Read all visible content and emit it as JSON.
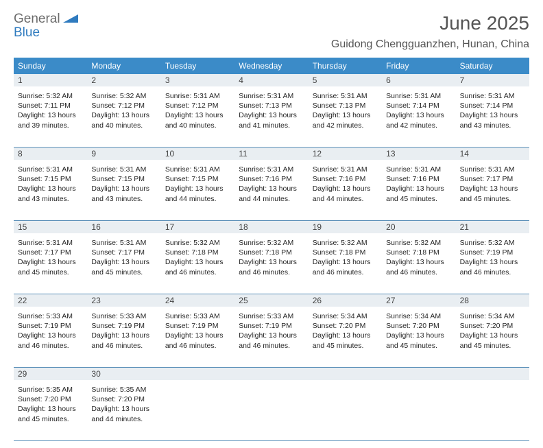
{
  "logo": {
    "general": "General",
    "blue": "Blue"
  },
  "title": "June 2025",
  "location": "Guidong Chengguanzhen, Hunan, China",
  "colors": {
    "header_bg": "#3b8bc8",
    "header_text": "#ffffff",
    "daynum_bg": "#e9eef2",
    "border": "#5a8fb8",
    "title_color": "#555555",
    "text_color": "#252525"
  },
  "weekdays": [
    "Sunday",
    "Monday",
    "Tuesday",
    "Wednesday",
    "Thursday",
    "Friday",
    "Saturday"
  ],
  "weeks": [
    [
      {
        "n": "1",
        "sr": "Sunrise: 5:32 AM",
        "ss": "Sunset: 7:11 PM",
        "d1": "Daylight: 13 hours",
        "d2": "and 39 minutes."
      },
      {
        "n": "2",
        "sr": "Sunrise: 5:32 AM",
        "ss": "Sunset: 7:12 PM",
        "d1": "Daylight: 13 hours",
        "d2": "and 40 minutes."
      },
      {
        "n": "3",
        "sr": "Sunrise: 5:31 AM",
        "ss": "Sunset: 7:12 PM",
        "d1": "Daylight: 13 hours",
        "d2": "and 40 minutes."
      },
      {
        "n": "4",
        "sr": "Sunrise: 5:31 AM",
        "ss": "Sunset: 7:13 PM",
        "d1": "Daylight: 13 hours",
        "d2": "and 41 minutes."
      },
      {
        "n": "5",
        "sr": "Sunrise: 5:31 AM",
        "ss": "Sunset: 7:13 PM",
        "d1": "Daylight: 13 hours",
        "d2": "and 42 minutes."
      },
      {
        "n": "6",
        "sr": "Sunrise: 5:31 AM",
        "ss": "Sunset: 7:14 PM",
        "d1": "Daylight: 13 hours",
        "d2": "and 42 minutes."
      },
      {
        "n": "7",
        "sr": "Sunrise: 5:31 AM",
        "ss": "Sunset: 7:14 PM",
        "d1": "Daylight: 13 hours",
        "d2": "and 43 minutes."
      }
    ],
    [
      {
        "n": "8",
        "sr": "Sunrise: 5:31 AM",
        "ss": "Sunset: 7:15 PM",
        "d1": "Daylight: 13 hours",
        "d2": "and 43 minutes."
      },
      {
        "n": "9",
        "sr": "Sunrise: 5:31 AM",
        "ss": "Sunset: 7:15 PM",
        "d1": "Daylight: 13 hours",
        "d2": "and 43 minutes."
      },
      {
        "n": "10",
        "sr": "Sunrise: 5:31 AM",
        "ss": "Sunset: 7:15 PM",
        "d1": "Daylight: 13 hours",
        "d2": "and 44 minutes."
      },
      {
        "n": "11",
        "sr": "Sunrise: 5:31 AM",
        "ss": "Sunset: 7:16 PM",
        "d1": "Daylight: 13 hours",
        "d2": "and 44 minutes."
      },
      {
        "n": "12",
        "sr": "Sunrise: 5:31 AM",
        "ss": "Sunset: 7:16 PM",
        "d1": "Daylight: 13 hours",
        "d2": "and 44 minutes."
      },
      {
        "n": "13",
        "sr": "Sunrise: 5:31 AM",
        "ss": "Sunset: 7:16 PM",
        "d1": "Daylight: 13 hours",
        "d2": "and 45 minutes."
      },
      {
        "n": "14",
        "sr": "Sunrise: 5:31 AM",
        "ss": "Sunset: 7:17 PM",
        "d1": "Daylight: 13 hours",
        "d2": "and 45 minutes."
      }
    ],
    [
      {
        "n": "15",
        "sr": "Sunrise: 5:31 AM",
        "ss": "Sunset: 7:17 PM",
        "d1": "Daylight: 13 hours",
        "d2": "and 45 minutes."
      },
      {
        "n": "16",
        "sr": "Sunrise: 5:31 AM",
        "ss": "Sunset: 7:17 PM",
        "d1": "Daylight: 13 hours",
        "d2": "and 45 minutes."
      },
      {
        "n": "17",
        "sr": "Sunrise: 5:32 AM",
        "ss": "Sunset: 7:18 PM",
        "d1": "Daylight: 13 hours",
        "d2": "and 46 minutes."
      },
      {
        "n": "18",
        "sr": "Sunrise: 5:32 AM",
        "ss": "Sunset: 7:18 PM",
        "d1": "Daylight: 13 hours",
        "d2": "and 46 minutes."
      },
      {
        "n": "19",
        "sr": "Sunrise: 5:32 AM",
        "ss": "Sunset: 7:18 PM",
        "d1": "Daylight: 13 hours",
        "d2": "and 46 minutes."
      },
      {
        "n": "20",
        "sr": "Sunrise: 5:32 AM",
        "ss": "Sunset: 7:18 PM",
        "d1": "Daylight: 13 hours",
        "d2": "and 46 minutes."
      },
      {
        "n": "21",
        "sr": "Sunrise: 5:32 AM",
        "ss": "Sunset: 7:19 PM",
        "d1": "Daylight: 13 hours",
        "d2": "and 46 minutes."
      }
    ],
    [
      {
        "n": "22",
        "sr": "Sunrise: 5:33 AM",
        "ss": "Sunset: 7:19 PM",
        "d1": "Daylight: 13 hours",
        "d2": "and 46 minutes."
      },
      {
        "n": "23",
        "sr": "Sunrise: 5:33 AM",
        "ss": "Sunset: 7:19 PM",
        "d1": "Daylight: 13 hours",
        "d2": "and 46 minutes."
      },
      {
        "n": "24",
        "sr": "Sunrise: 5:33 AM",
        "ss": "Sunset: 7:19 PM",
        "d1": "Daylight: 13 hours",
        "d2": "and 46 minutes."
      },
      {
        "n": "25",
        "sr": "Sunrise: 5:33 AM",
        "ss": "Sunset: 7:19 PM",
        "d1": "Daylight: 13 hours",
        "d2": "and 46 minutes."
      },
      {
        "n": "26",
        "sr": "Sunrise: 5:34 AM",
        "ss": "Sunset: 7:20 PM",
        "d1": "Daylight: 13 hours",
        "d2": "and 45 minutes."
      },
      {
        "n": "27",
        "sr": "Sunrise: 5:34 AM",
        "ss": "Sunset: 7:20 PM",
        "d1": "Daylight: 13 hours",
        "d2": "and 45 minutes."
      },
      {
        "n": "28",
        "sr": "Sunrise: 5:34 AM",
        "ss": "Sunset: 7:20 PM",
        "d1": "Daylight: 13 hours",
        "d2": "and 45 minutes."
      }
    ],
    [
      {
        "n": "29",
        "sr": "Sunrise: 5:35 AM",
        "ss": "Sunset: 7:20 PM",
        "d1": "Daylight: 13 hours",
        "d2": "and 45 minutes."
      },
      {
        "n": "30",
        "sr": "Sunrise: 5:35 AM",
        "ss": "Sunset: 7:20 PM",
        "d1": "Daylight: 13 hours",
        "d2": "and 44 minutes."
      },
      null,
      null,
      null,
      null,
      null
    ]
  ]
}
